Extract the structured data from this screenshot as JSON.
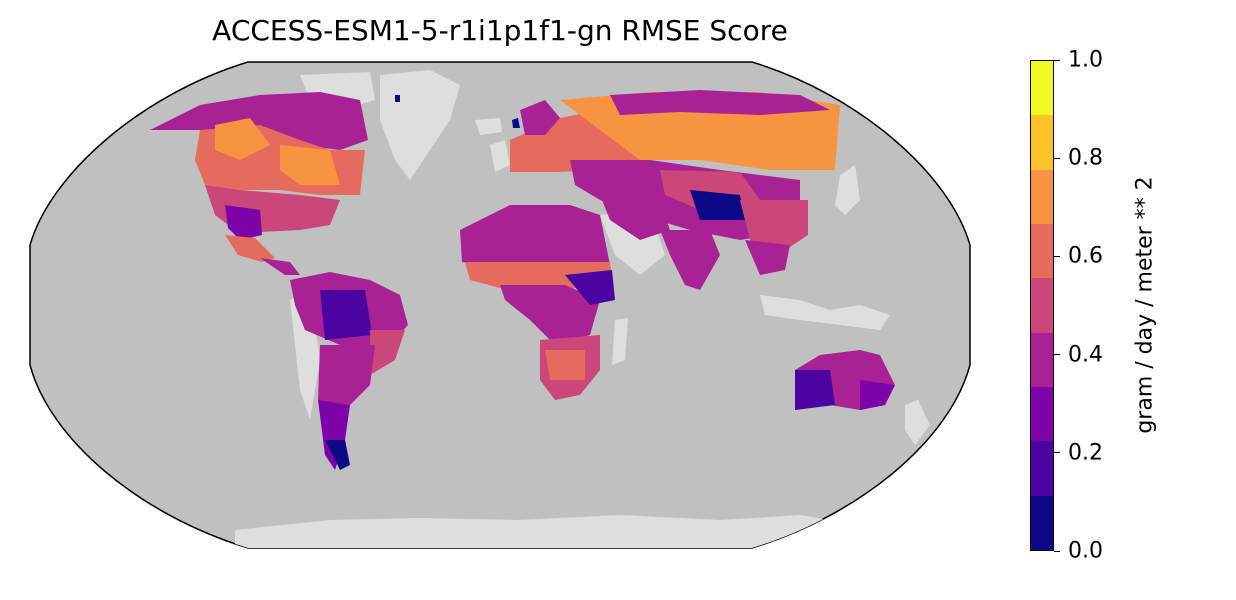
{
  "map": {
    "title": "ACCESS-ESM1-5-r1i1p1f1-gn RMSE Score",
    "projection": "Robinson",
    "ocean_color": "#c0c0c0",
    "land_color": "#dedede",
    "colormap": "plasma"
  },
  "colorbar": {
    "label": "gram / day / meter ** 2",
    "min": 0.0,
    "max": 1.0,
    "ticks": [
      "0.0",
      "0.2",
      "0.4",
      "0.6",
      "0.8",
      "1.0"
    ],
    "colors": [
      "#0d0887",
      "#4b03a1",
      "#7d03a8",
      "#a82296",
      "#cb4679",
      "#e56b5d",
      "#f89441",
      "#fdc328",
      "#f0f921"
    ]
  }
}
